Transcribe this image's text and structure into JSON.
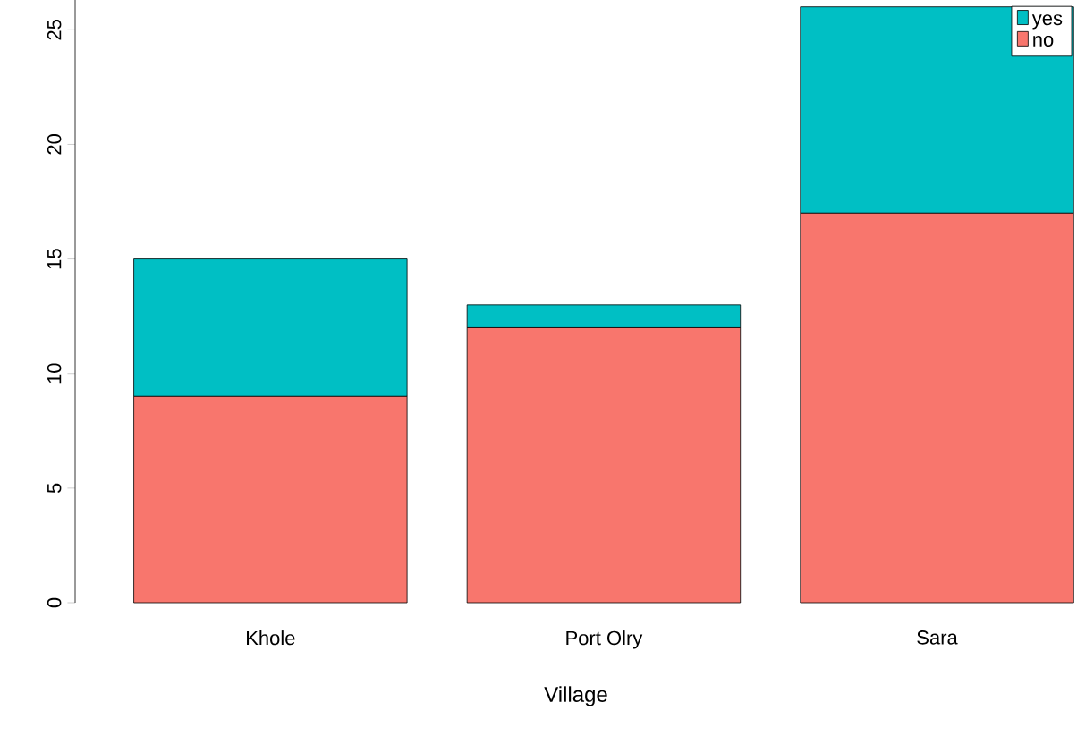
{
  "chart_data": {
    "type": "bar",
    "stacked": true,
    "xlabel": "Village",
    "categories": [
      "Khole",
      "Port Olry",
      "Sara"
    ],
    "series": [
      {
        "name": "no",
        "color": "#f8766d",
        "values": [
          9,
          12,
          17
        ]
      },
      {
        "name": "yes",
        "color": "#00bfc4",
        "values": [
          6,
          1,
          9
        ]
      }
    ],
    "ylim": [
      0,
      26.3
    ],
    "yticks": [
      0,
      5,
      10,
      15,
      20,
      25
    ],
    "legend": "top right"
  }
}
